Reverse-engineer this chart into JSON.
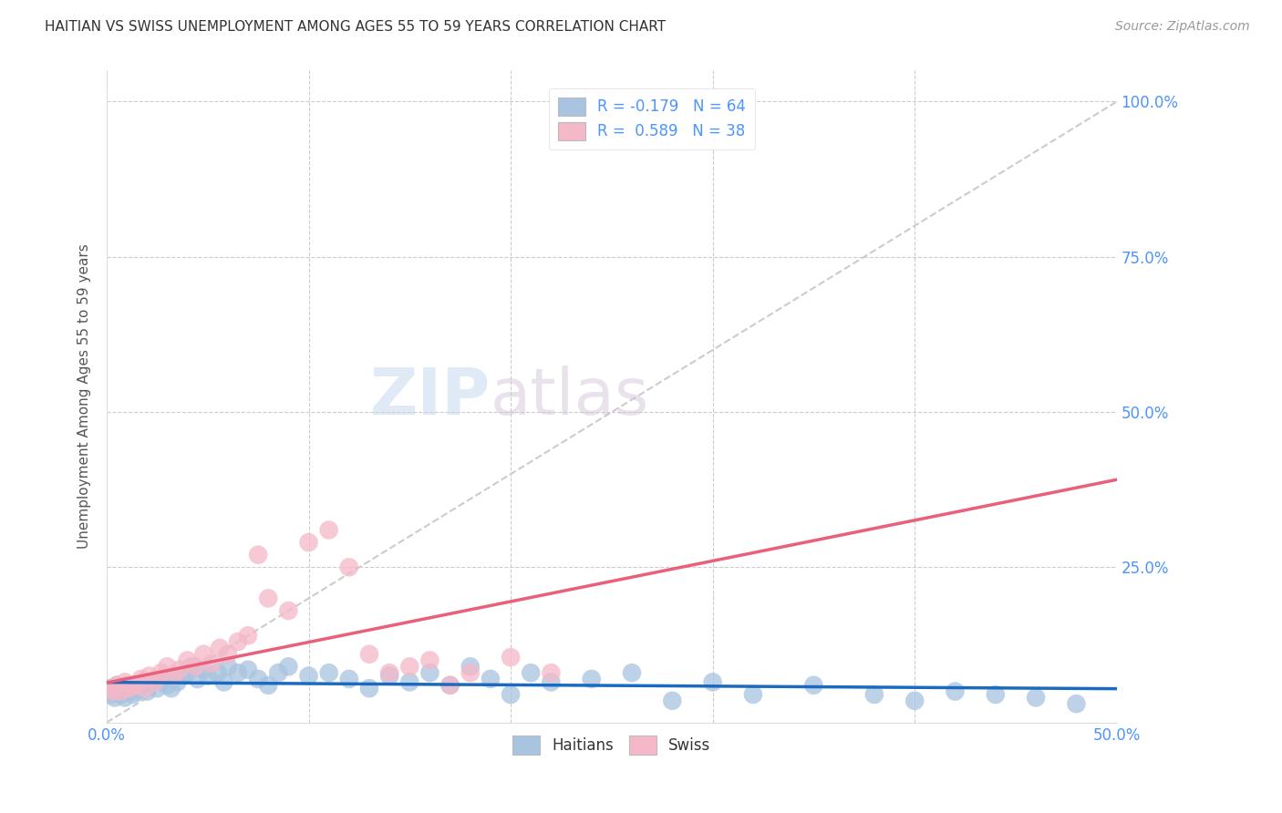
{
  "title": "HAITIAN VS UNEMPLOYMENT AMONG AGES 55 TO 59 YEARS CORRELATION CHART",
  "title_display": "HAITIAN VS SWISS UNEMPLOYMENT AMONG AGES 55 TO 59 YEARS CORRELATION CHART",
  "source": "Source: ZipAtlas.com",
  "ylabel": "Unemployment Among Ages 55 to 59 years",
  "xlim": [
    0.0,
    0.5
  ],
  "ylim": [
    0.0,
    1.05
  ],
  "grid_color": "#cccccc",
  "background_color": "#ffffff",
  "haitians_color": "#a8c4e0",
  "swiss_color": "#f4b8c8",
  "haitians_line_color": "#1a6bbf",
  "swiss_line_color": "#e8607a",
  "diagonal_color": "#cccccc",
  "R_haitians": -0.179,
  "N_haitians": 64,
  "R_swiss": 0.589,
  "N_swiss": 38,
  "legend_label_haitians": "Haitians",
  "legend_label_swiss": "Swiss",
  "watermark_zip": "ZIP",
  "watermark_atlas": "atlas",
  "haitians_x": [
    0.001,
    0.002,
    0.003,
    0.004,
    0.005,
    0.006,
    0.007,
    0.008,
    0.009,
    0.01,
    0.011,
    0.012,
    0.013,
    0.014,
    0.015,
    0.016,
    0.018,
    0.02,
    0.022,
    0.025,
    0.028,
    0.03,
    0.032,
    0.035,
    0.038,
    0.04,
    0.042,
    0.045,
    0.048,
    0.05,
    0.055,
    0.058,
    0.06,
    0.065,
    0.07,
    0.075,
    0.08,
    0.085,
    0.09,
    0.1,
    0.11,
    0.12,
    0.13,
    0.14,
    0.15,
    0.16,
    0.17,
    0.18,
    0.19,
    0.2,
    0.21,
    0.22,
    0.24,
    0.26,
    0.28,
    0.3,
    0.32,
    0.35,
    0.38,
    0.4,
    0.42,
    0.44,
    0.46,
    0.48
  ],
  "haitians_y": [
    0.05,
    0.045,
    0.055,
    0.04,
    0.06,
    0.05,
    0.045,
    0.055,
    0.04,
    0.06,
    0.05,
    0.055,
    0.045,
    0.06,
    0.05,
    0.055,
    0.06,
    0.05,
    0.065,
    0.055,
    0.07,
    0.06,
    0.055,
    0.065,
    0.075,
    0.08,
    0.09,
    0.07,
    0.085,
    0.075,
    0.08,
    0.065,
    0.09,
    0.08,
    0.085,
    0.07,
    0.06,
    0.08,
    0.09,
    0.075,
    0.08,
    0.07,
    0.055,
    0.075,
    0.065,
    0.08,
    0.06,
    0.09,
    0.07,
    0.045,
    0.08,
    0.065,
    0.07,
    0.08,
    0.035,
    0.065,
    0.045,
    0.06,
    0.045,
    0.035,
    0.05,
    0.045,
    0.04,
    0.03
  ],
  "swiss_x": [
    0.001,
    0.003,
    0.005,
    0.007,
    0.009,
    0.011,
    0.013,
    0.015,
    0.017,
    0.019,
    0.021,
    0.024,
    0.027,
    0.03,
    0.033,
    0.036,
    0.04,
    0.044,
    0.048,
    0.052,
    0.056,
    0.06,
    0.065,
    0.07,
    0.075,
    0.08,
    0.09,
    0.1,
    0.11,
    0.12,
    0.13,
    0.14,
    0.15,
    0.16,
    0.17,
    0.18,
    0.2,
    0.22
  ],
  "swiss_y": [
    0.055,
    0.05,
    0.06,
    0.05,
    0.065,
    0.055,
    0.06,
    0.06,
    0.07,
    0.055,
    0.075,
    0.065,
    0.08,
    0.09,
    0.075,
    0.085,
    0.1,
    0.09,
    0.11,
    0.095,
    0.12,
    0.11,
    0.13,
    0.14,
    0.27,
    0.2,
    0.18,
    0.29,
    0.31,
    0.25,
    0.11,
    0.08,
    0.09,
    0.1,
    0.06,
    0.08,
    0.105,
    0.08
  ]
}
